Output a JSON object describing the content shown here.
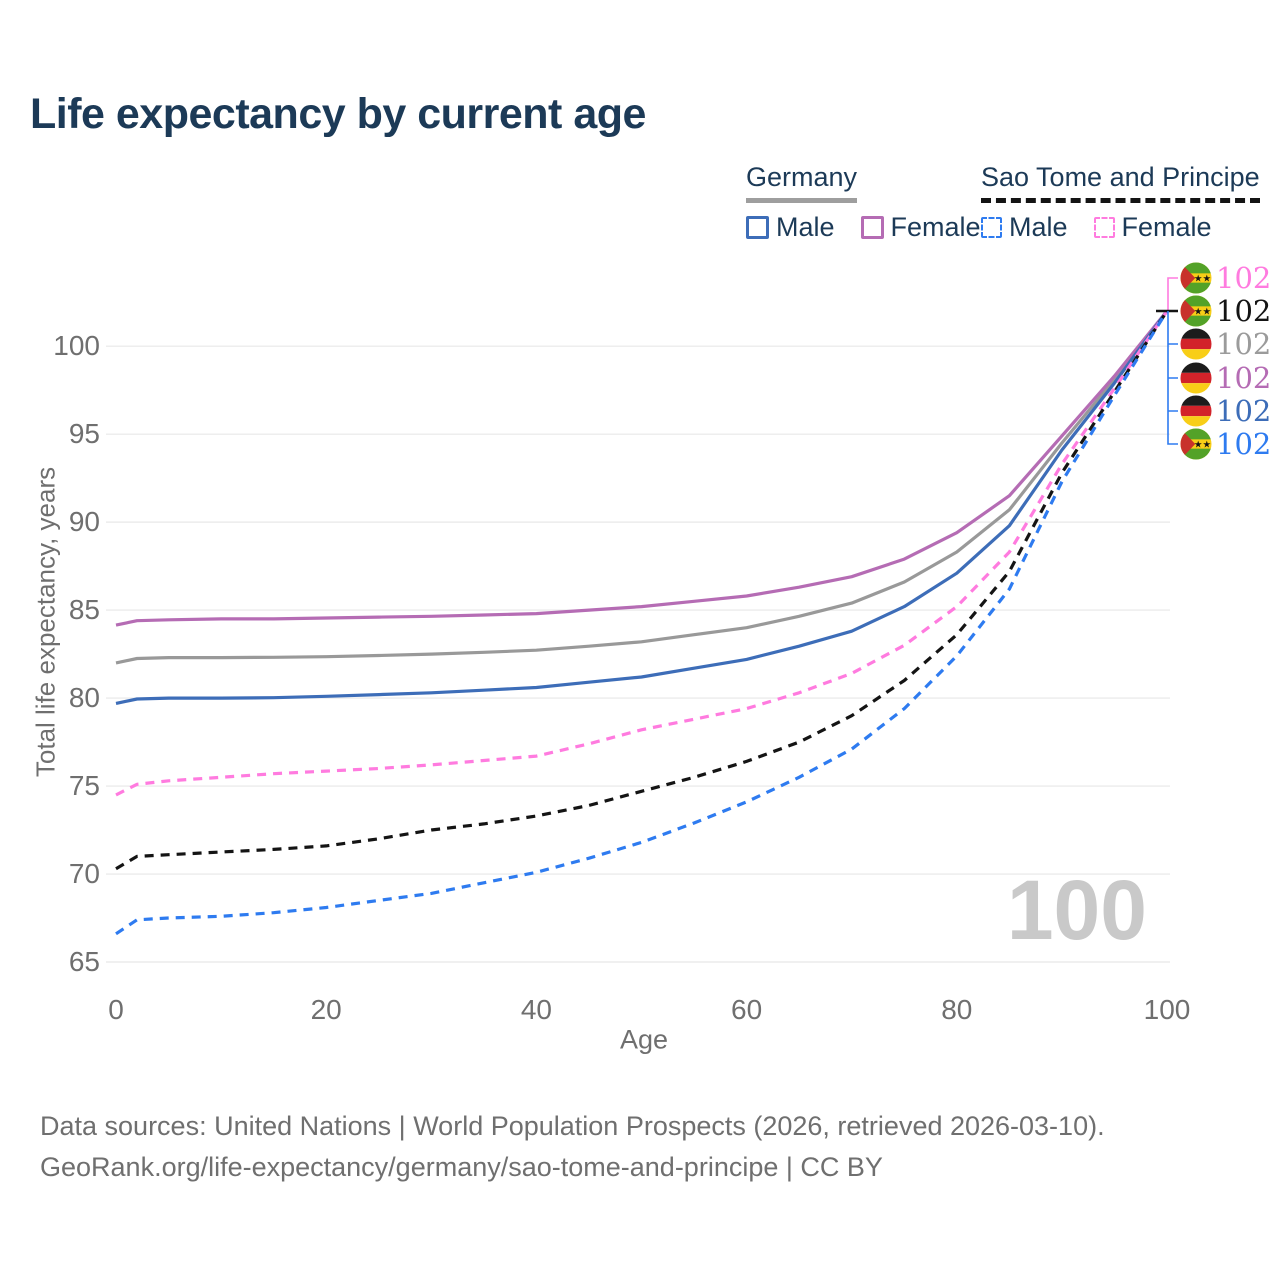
{
  "title": "Life expectancy by current age",
  "watermark": "100",
  "legend": {
    "groups": [
      {
        "label": "Germany",
        "underline_color": "#9e9e9e",
        "underline_dashed": false,
        "items": [
          {
            "label": "Male",
            "color": "#3d6db8",
            "dashed": false
          },
          {
            "label": "Female",
            "color": "#b56cb4",
            "dashed": false
          }
        ]
      },
      {
        "label": "Sao Tome and Principe",
        "underline_color": "#141414",
        "underline_dashed": true,
        "items": [
          {
            "label": "Male",
            "color": "#2e7bf0",
            "dashed": true
          },
          {
            "label": "Female",
            "color": "#ff7bdf",
            "dashed": true
          }
        ]
      }
    ]
  },
  "chart_data": {
    "type": "line",
    "title": "Life expectancy by current age",
    "xlabel": "Age",
    "ylabel": "Total life expectancy, years",
    "xlim": [
      0,
      100
    ],
    "ylim": [
      65,
      102
    ],
    "xticks": [
      0,
      20,
      40,
      60,
      80,
      100
    ],
    "yticks": [
      65,
      70,
      75,
      80,
      85,
      90,
      95,
      100
    ],
    "grid": "horizontal",
    "legend_position": "top-right",
    "x": [
      0,
      2,
      5,
      10,
      15,
      20,
      25,
      30,
      35,
      40,
      45,
      50,
      55,
      60,
      65,
      70,
      75,
      80,
      85,
      90,
      95,
      100
    ],
    "series": [
      {
        "name": "Germany",
        "legend": "Germany (both sexes)",
        "color": "#999999",
        "dashed": false,
        "values": [
          82.0,
          82.25,
          82.3,
          82.3,
          82.32,
          82.35,
          82.42,
          82.5,
          82.6,
          82.72,
          82.95,
          83.2,
          83.6,
          84.0,
          84.65,
          85.4,
          86.6,
          88.3,
          90.7,
          94.5,
          98.1,
          102
        ]
      },
      {
        "name": "Germany Female",
        "legend": "Female",
        "color": "#b56cb4",
        "dashed": false,
        "values": [
          84.15,
          84.4,
          84.45,
          84.5,
          84.5,
          84.55,
          84.6,
          84.65,
          84.72,
          84.8,
          85.0,
          85.2,
          85.5,
          85.8,
          86.3,
          86.9,
          87.9,
          89.4,
          91.5,
          94.9,
          98.3,
          102
        ]
      },
      {
        "name": "Germany Male",
        "legend": "Male",
        "color": "#3d6db8",
        "dashed": false,
        "values": [
          79.7,
          79.95,
          80.0,
          80.0,
          80.02,
          80.1,
          80.2,
          80.3,
          80.45,
          80.6,
          80.9,
          81.2,
          81.7,
          82.2,
          82.95,
          83.8,
          85.2,
          87.1,
          89.8,
          94.1,
          97.9,
          102
        ]
      },
      {
        "name": "Sao Tome and Principe Female",
        "legend": "Female",
        "color": "#ff7bdf",
        "dashed": true,
        "values": [
          74.5,
          75.1,
          75.3,
          75.5,
          75.7,
          75.85,
          76.0,
          76.2,
          76.45,
          76.7,
          77.4,
          78.2,
          78.8,
          79.4,
          80.3,
          81.4,
          83.0,
          85.2,
          88.3,
          93.3,
          97.6,
          102
        ]
      },
      {
        "name": "Sao Tome and Principe",
        "legend": "Sao Tome and Principe (both sexes)",
        "color": "#141414",
        "dashed": true,
        "values": [
          70.3,
          71.0,
          71.1,
          71.25,
          71.4,
          71.6,
          72.0,
          72.5,
          72.85,
          73.3,
          73.9,
          74.7,
          75.5,
          76.4,
          77.5,
          79.0,
          81.0,
          83.6,
          87.2,
          92.8,
          97.4,
          102
        ]
      },
      {
        "name": "Sao Tome and Principe Male",
        "legend": "Male",
        "color": "#2e7bf0",
        "dashed": true,
        "values": [
          66.6,
          67.4,
          67.5,
          67.6,
          67.8,
          68.1,
          68.5,
          68.9,
          69.5,
          70.1,
          70.9,
          71.8,
          72.9,
          74.1,
          75.5,
          77.1,
          79.4,
          82.4,
          86.2,
          92.3,
          97.2,
          102
        ]
      }
    ],
    "end_labels": [
      {
        "flag": "sao-tome-and-principe",
        "value": "102",
        "color": "#ff7bdf"
      },
      {
        "flag": "sao-tome-and-principe",
        "value": "102",
        "color": "#141414"
      },
      {
        "flag": "germany",
        "value": "102",
        "color": "#9b9b9b"
      },
      {
        "flag": "germany",
        "value": "102",
        "color": "#b56cb4"
      },
      {
        "flag": "germany",
        "value": "102",
        "color": "#3d6db8"
      },
      {
        "flag": "sao-tome-and-principe",
        "value": "102",
        "color": "#2e7bf0"
      }
    ]
  },
  "footer": {
    "line1": "Data sources: United Nations | World Population Prospects (2026, retrieved 2026-03-10).",
    "line2": "GeoRank.org/life-expectancy/germany/sao-tome-and-principe | CC BY"
  }
}
